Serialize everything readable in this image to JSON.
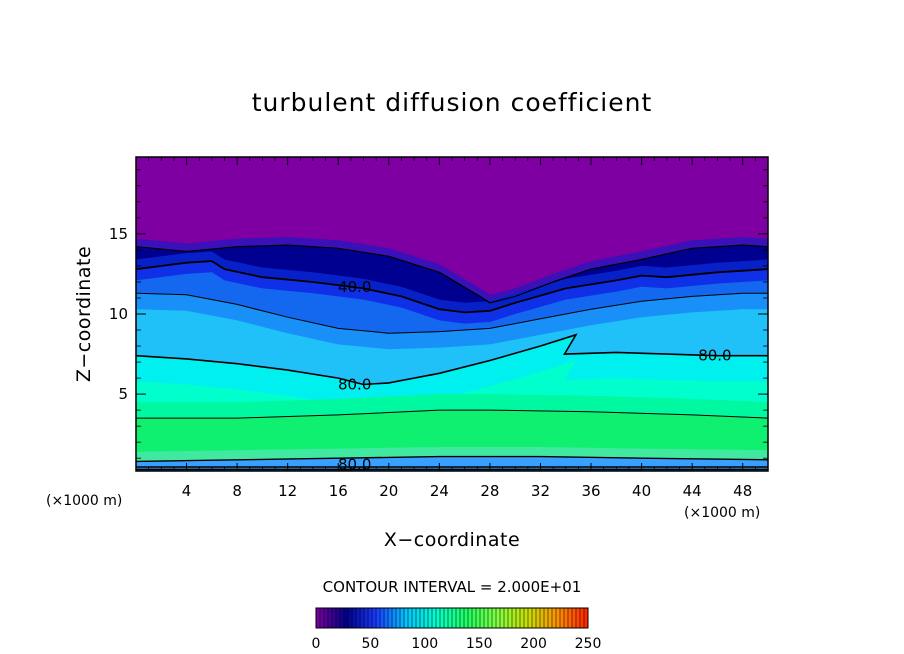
{
  "chart_data": {
    "type": "heatmap",
    "title": "turbulent diffusion coefficient",
    "xlabel": "X−coordinate",
    "ylabel": "Z−coordinate",
    "x_unit_left": "(×1000 m)",
    "x_unit_right": "(×1000 m)",
    "xlim": [
      0,
      50
    ],
    "ylim": [
      0.2,
      19.8
    ],
    "x_ticks": [
      4,
      8,
      12,
      16,
      20,
      24,
      28,
      32,
      36,
      40,
      44,
      48
    ],
    "y_ticks": [
      5,
      10,
      15
    ],
    "contour_interval_text": "CONTOUR INTERVAL = 2.000E+01",
    "contour_labels": [
      {
        "text": "40.0",
        "x": 17.3,
        "z": 11.7
      },
      {
        "text": "80.0",
        "x": 45.8,
        "z": 7.4
      },
      {
        "text": "80.0",
        "x": 17.3,
        "z": 5.6
      },
      {
        "text": "80.0",
        "x": 17.3,
        "z": 0.6
      }
    ],
    "colorbar": {
      "min": 0,
      "max": 250,
      "ticks": [
        0,
        50,
        100,
        150,
        200,
        250
      ],
      "colors": [
        "#7e00a0",
        "#00008c",
        "#1a3cff",
        "#00c8ff",
        "#00ffcc",
        "#20ff60",
        "#80ff40",
        "#c8e000",
        "#ff9000",
        "#ff2000"
      ]
    },
    "field_colors": {
      "top": "#7e00a2",
      "dark": "#000090",
      "deep_blue": "#1030e8",
      "mid_blue": "#1890f8",
      "light_blue": "#20c0f8",
      "cyan": "#00f0f0",
      "aqua": "#00ffcc",
      "teal_green": "#00f8a0",
      "green": "#10f070",
      "bottom_green": "#40e8a0",
      "ground_blue": "#3aa0ff"
    },
    "contours": [
      {
        "level": "high_40",
        "points": [
          [
            0,
            14.2
          ],
          [
            4,
            13.9
          ],
          [
            8,
            14.2
          ],
          [
            12,
            14.3
          ],
          [
            16,
            14.1
          ],
          [
            20,
            13.6
          ],
          [
            24,
            12.6
          ],
          [
            27,
            11.2
          ],
          [
            28,
            10.7
          ],
          [
            30,
            11.1
          ],
          [
            33,
            12.0
          ],
          [
            36,
            12.8
          ],
          [
            40,
            13.4
          ],
          [
            44,
            14.1
          ],
          [
            48,
            14.3
          ],
          [
            50,
            14.2
          ]
        ]
      },
      {
        "level": "40.0",
        "points": [
          [
            0,
            12.8
          ],
          [
            4,
            13.2
          ],
          [
            6,
            13.3
          ],
          [
            7,
            12.8
          ],
          [
            10,
            12.3
          ],
          [
            14,
            12.0
          ],
          [
            18,
            11.6
          ],
          [
            21,
            11.1
          ],
          [
            24,
            10.3
          ],
          [
            26,
            10.1
          ],
          [
            28,
            10.2
          ],
          [
            30,
            10.7
          ],
          [
            34,
            11.6
          ],
          [
            38,
            12.1
          ],
          [
            40,
            12.4
          ],
          [
            42,
            12.3
          ],
          [
            46,
            12.6
          ],
          [
            50,
            12.8
          ]
        ]
      },
      {
        "level": "60",
        "points": [
          [
            0,
            11.3
          ],
          [
            4,
            11.2
          ],
          [
            8,
            10.6
          ],
          [
            12,
            9.8
          ],
          [
            16,
            9.1
          ],
          [
            20,
            8.8
          ],
          [
            24,
            8.9
          ],
          [
            28,
            9.1
          ],
          [
            32,
            9.7
          ],
          [
            36,
            10.3
          ],
          [
            40,
            10.8
          ],
          [
            44,
            11.1
          ],
          [
            48,
            11.3
          ],
          [
            50,
            11.3
          ]
        ]
      },
      {
        "level": "80.0",
        "points": [
          [
            0,
            7.4
          ],
          [
            4,
            7.2
          ],
          [
            8,
            6.9
          ],
          [
            12,
            6.5
          ],
          [
            16,
            6.0
          ],
          [
            18,
            5.6
          ],
          [
            20,
            5.7
          ],
          [
            24,
            6.3
          ],
          [
            28,
            7.1
          ],
          [
            32,
            8.0
          ],
          [
            34.8,
            8.7
          ],
          [
            33.9,
            7.5
          ],
          [
            38,
            7.6
          ],
          [
            42,
            7.5
          ],
          [
            46,
            7.4
          ],
          [
            50,
            7.4
          ]
        ]
      },
      {
        "level": "100",
        "points": [
          [
            0,
            3.5
          ],
          [
            8,
            3.5
          ],
          [
            16,
            3.7
          ],
          [
            24,
            4.0
          ],
          [
            28,
            4.0
          ],
          [
            36,
            3.9
          ],
          [
            44,
            3.7
          ],
          [
            50,
            3.5
          ]
        ]
      },
      {
        "level": "80.0 low",
        "points": [
          [
            0,
            0.8
          ],
          [
            8,
            0.9
          ],
          [
            16,
            1.0
          ],
          [
            24,
            1.1
          ],
          [
            32,
            1.1
          ],
          [
            40,
            1.0
          ],
          [
            50,
            0.9
          ]
        ]
      }
    ]
  }
}
